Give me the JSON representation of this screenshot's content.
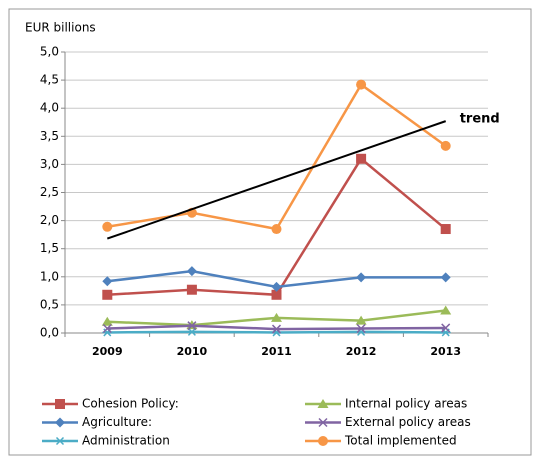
{
  "chart_data": {
    "type": "line",
    "y_label": "EUR billions",
    "categories": [
      "2009",
      "2010",
      "2011",
      "2012",
      "2013"
    ],
    "series": [
      {
        "name": "Cohesion Policy:",
        "color": "#c0504d",
        "marker": "square",
        "values": [
          0.68,
          0.77,
          0.68,
          3.1,
          1.85
        ]
      },
      {
        "name": "Agriculture:",
        "color": "#4f81bd",
        "marker": "diamond",
        "values": [
          0.92,
          1.1,
          0.82,
          0.99,
          0.99
        ]
      },
      {
        "name": "Administration",
        "color": "#4bacc6",
        "marker": "star",
        "values": [
          0.01,
          0.02,
          0.01,
          0.02,
          0.01
        ]
      },
      {
        "name": "Internal policy areas",
        "color": "#9bbb59",
        "marker": "triangle",
        "values": [
          0.2,
          0.14,
          0.27,
          0.22,
          0.4
        ]
      },
      {
        "name": "External policy areas",
        "color": "#8064a2",
        "marker": "x",
        "values": [
          0.08,
          0.13,
          0.07,
          0.08,
          0.09
        ]
      },
      {
        "name": "Total implemented",
        "color": "#f79646",
        "marker": "circle",
        "values": [
          1.89,
          2.14,
          1.85,
          4.42,
          3.33
        ]
      }
    ],
    "trend": {
      "label": "trend",
      "start": 1.68,
      "end": 3.77,
      "color": "#000000"
    },
    "ylim": [
      0,
      5
    ],
    "yticks": [
      {
        "value": 0,
        "label": "0,0"
      },
      {
        "value": 0.5,
        "label": "0,5"
      },
      {
        "value": 1,
        "label": "1,0"
      },
      {
        "value": 1.5,
        "label": "1,5"
      },
      {
        "value": 2,
        "label": "2,0"
      },
      {
        "value": 2.5,
        "label": "2,5"
      },
      {
        "value": 3,
        "label": "3,0"
      },
      {
        "value": 3.5,
        "label": "3,5"
      },
      {
        "value": 4,
        "label": "4,0"
      },
      {
        "value": 4.5,
        "label": "4,5"
      },
      {
        "value": 5,
        "label": "5,0"
      }
    ],
    "grid": true
  }
}
